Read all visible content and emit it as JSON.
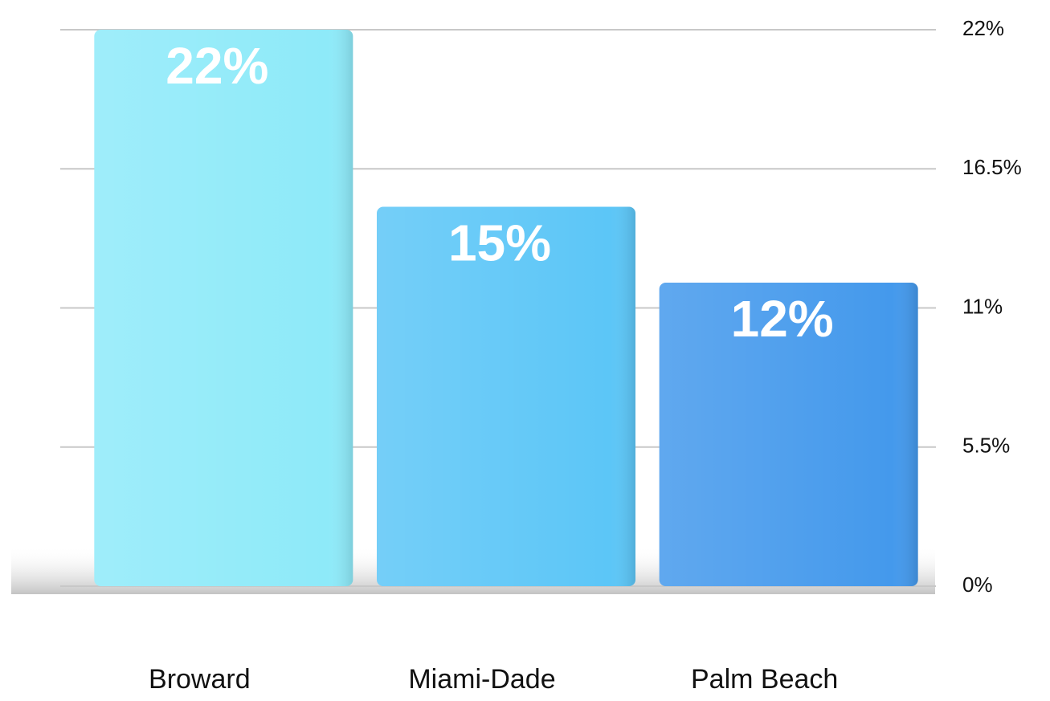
{
  "chart_data": {
    "type": "bar",
    "categories": [
      "Broward",
      "Miami-Dade",
      "Palm Beach"
    ],
    "values": [
      22,
      15,
      12
    ],
    "value_labels": [
      "22%",
      "15%",
      "12%"
    ],
    "colors": [
      "#8eeaf9",
      "#5cc6f7",
      "#4499ec"
    ],
    "ylim": [
      0,
      22
    ],
    "yticks": [
      {
        "value": 0,
        "label": "0%"
      },
      {
        "value": 5.5,
        "label": "5.5%"
      },
      {
        "value": 11,
        "label": "11%"
      },
      {
        "value": 16.5,
        "label": "16.5%"
      },
      {
        "value": 22,
        "label": "22%"
      }
    ],
    "grid": true,
    "y_axis_side": "right"
  }
}
